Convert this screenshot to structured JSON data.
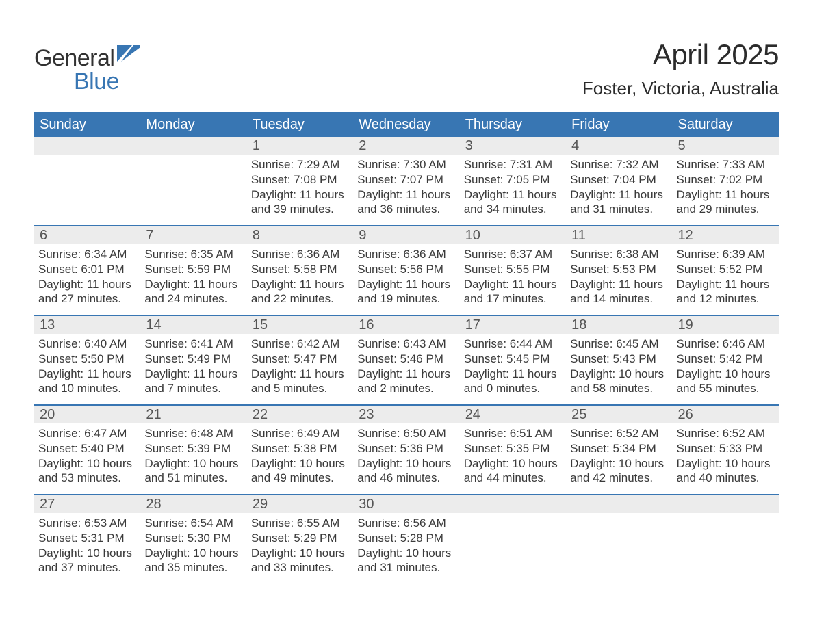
{
  "logo": {
    "word1": "General",
    "word2": "Blue",
    "word1_color": "#323232",
    "word2_color": "#3876b3",
    "flag_color": "#3876b3"
  },
  "title": "April 2025",
  "location": "Foster, Victoria, Australia",
  "colors": {
    "header_bg": "#3876b3",
    "header_text": "#ffffff",
    "datenum_bg": "#ececec",
    "week_border": "#3876b3",
    "body_text": "#3a3a3a"
  },
  "typography": {
    "title_fontsize": 42,
    "location_fontsize": 26,
    "dayhead_fontsize": 20,
    "datenum_fontsize": 20,
    "cell_fontsize": 17
  },
  "day_names": [
    "Sunday",
    "Monday",
    "Tuesday",
    "Wednesday",
    "Thursday",
    "Friday",
    "Saturday"
  ],
  "weeks": [
    [
      null,
      null,
      {
        "d": "1",
        "sunrise": "Sunrise: 7:29 AM",
        "sunset": "Sunset: 7:08 PM",
        "day1": "Daylight: 11 hours",
        "day2": "and 39 minutes."
      },
      {
        "d": "2",
        "sunrise": "Sunrise: 7:30 AM",
        "sunset": "Sunset: 7:07 PM",
        "day1": "Daylight: 11 hours",
        "day2": "and 36 minutes."
      },
      {
        "d": "3",
        "sunrise": "Sunrise: 7:31 AM",
        "sunset": "Sunset: 7:05 PM",
        "day1": "Daylight: 11 hours",
        "day2": "and 34 minutes."
      },
      {
        "d": "4",
        "sunrise": "Sunrise: 7:32 AM",
        "sunset": "Sunset: 7:04 PM",
        "day1": "Daylight: 11 hours",
        "day2": "and 31 minutes."
      },
      {
        "d": "5",
        "sunrise": "Sunrise: 7:33 AM",
        "sunset": "Sunset: 7:02 PM",
        "day1": "Daylight: 11 hours",
        "day2": "and 29 minutes."
      }
    ],
    [
      {
        "d": "6",
        "sunrise": "Sunrise: 6:34 AM",
        "sunset": "Sunset: 6:01 PM",
        "day1": "Daylight: 11 hours",
        "day2": "and 27 minutes."
      },
      {
        "d": "7",
        "sunrise": "Sunrise: 6:35 AM",
        "sunset": "Sunset: 5:59 PM",
        "day1": "Daylight: 11 hours",
        "day2": "and 24 minutes."
      },
      {
        "d": "8",
        "sunrise": "Sunrise: 6:36 AM",
        "sunset": "Sunset: 5:58 PM",
        "day1": "Daylight: 11 hours",
        "day2": "and 22 minutes."
      },
      {
        "d": "9",
        "sunrise": "Sunrise: 6:36 AM",
        "sunset": "Sunset: 5:56 PM",
        "day1": "Daylight: 11 hours",
        "day2": "and 19 minutes."
      },
      {
        "d": "10",
        "sunrise": "Sunrise: 6:37 AM",
        "sunset": "Sunset: 5:55 PM",
        "day1": "Daylight: 11 hours",
        "day2": "and 17 minutes."
      },
      {
        "d": "11",
        "sunrise": "Sunrise: 6:38 AM",
        "sunset": "Sunset: 5:53 PM",
        "day1": "Daylight: 11 hours",
        "day2": "and 14 minutes."
      },
      {
        "d": "12",
        "sunrise": "Sunrise: 6:39 AM",
        "sunset": "Sunset: 5:52 PM",
        "day1": "Daylight: 11 hours",
        "day2": "and 12 minutes."
      }
    ],
    [
      {
        "d": "13",
        "sunrise": "Sunrise: 6:40 AM",
        "sunset": "Sunset: 5:50 PM",
        "day1": "Daylight: 11 hours",
        "day2": "and 10 minutes."
      },
      {
        "d": "14",
        "sunrise": "Sunrise: 6:41 AM",
        "sunset": "Sunset: 5:49 PM",
        "day1": "Daylight: 11 hours",
        "day2": "and 7 minutes."
      },
      {
        "d": "15",
        "sunrise": "Sunrise: 6:42 AM",
        "sunset": "Sunset: 5:47 PM",
        "day1": "Daylight: 11 hours",
        "day2": "and 5 minutes."
      },
      {
        "d": "16",
        "sunrise": "Sunrise: 6:43 AM",
        "sunset": "Sunset: 5:46 PM",
        "day1": "Daylight: 11 hours",
        "day2": "and 2 minutes."
      },
      {
        "d": "17",
        "sunrise": "Sunrise: 6:44 AM",
        "sunset": "Sunset: 5:45 PM",
        "day1": "Daylight: 11 hours",
        "day2": "and 0 minutes."
      },
      {
        "d": "18",
        "sunrise": "Sunrise: 6:45 AM",
        "sunset": "Sunset: 5:43 PM",
        "day1": "Daylight: 10 hours",
        "day2": "and 58 minutes."
      },
      {
        "d": "19",
        "sunrise": "Sunrise: 6:46 AM",
        "sunset": "Sunset: 5:42 PM",
        "day1": "Daylight: 10 hours",
        "day2": "and 55 minutes."
      }
    ],
    [
      {
        "d": "20",
        "sunrise": "Sunrise: 6:47 AM",
        "sunset": "Sunset: 5:40 PM",
        "day1": "Daylight: 10 hours",
        "day2": "and 53 minutes."
      },
      {
        "d": "21",
        "sunrise": "Sunrise: 6:48 AM",
        "sunset": "Sunset: 5:39 PM",
        "day1": "Daylight: 10 hours",
        "day2": "and 51 minutes."
      },
      {
        "d": "22",
        "sunrise": "Sunrise: 6:49 AM",
        "sunset": "Sunset: 5:38 PM",
        "day1": "Daylight: 10 hours",
        "day2": "and 49 minutes."
      },
      {
        "d": "23",
        "sunrise": "Sunrise: 6:50 AM",
        "sunset": "Sunset: 5:36 PM",
        "day1": "Daylight: 10 hours",
        "day2": "and 46 minutes."
      },
      {
        "d": "24",
        "sunrise": "Sunrise: 6:51 AM",
        "sunset": "Sunset: 5:35 PM",
        "day1": "Daylight: 10 hours",
        "day2": "and 44 minutes."
      },
      {
        "d": "25",
        "sunrise": "Sunrise: 6:52 AM",
        "sunset": "Sunset: 5:34 PM",
        "day1": "Daylight: 10 hours",
        "day2": "and 42 minutes."
      },
      {
        "d": "26",
        "sunrise": "Sunrise: 6:52 AM",
        "sunset": "Sunset: 5:33 PM",
        "day1": "Daylight: 10 hours",
        "day2": "and 40 minutes."
      }
    ],
    [
      {
        "d": "27",
        "sunrise": "Sunrise: 6:53 AM",
        "sunset": "Sunset: 5:31 PM",
        "day1": "Daylight: 10 hours",
        "day2": "and 37 minutes."
      },
      {
        "d": "28",
        "sunrise": "Sunrise: 6:54 AM",
        "sunset": "Sunset: 5:30 PM",
        "day1": "Daylight: 10 hours",
        "day2": "and 35 minutes."
      },
      {
        "d": "29",
        "sunrise": "Sunrise: 6:55 AM",
        "sunset": "Sunset: 5:29 PM",
        "day1": "Daylight: 10 hours",
        "day2": "and 33 minutes."
      },
      {
        "d": "30",
        "sunrise": "Sunrise: 6:56 AM",
        "sunset": "Sunset: 5:28 PM",
        "day1": "Daylight: 10 hours",
        "day2": "and 31 minutes."
      },
      null,
      null,
      null
    ]
  ]
}
